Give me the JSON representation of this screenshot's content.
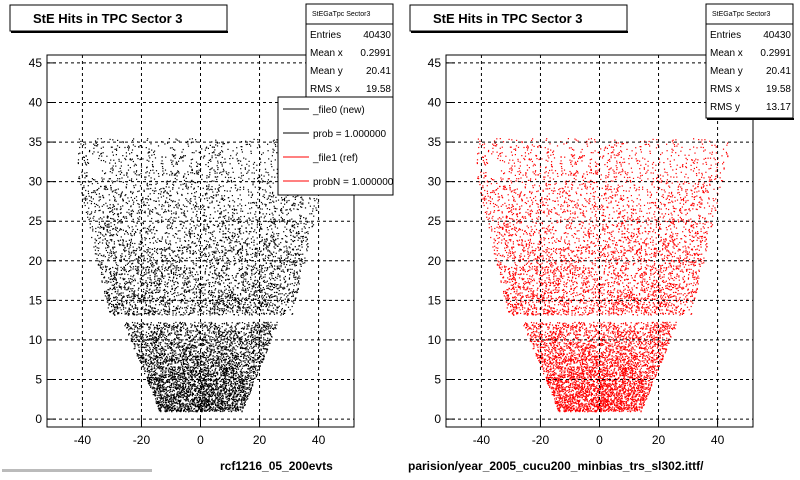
{
  "chart_data": [
    {
      "type": "scatter",
      "title": "StE Hits in TPC Sector 3",
      "xlabel": "",
      "ylabel": "",
      "xlim": [
        -52,
        52
      ],
      "ylim": [
        -1,
        46
      ],
      "xticks": [
        -40,
        -20,
        0,
        20,
        40
      ],
      "yticks": [
        0,
        5,
        10,
        15,
        20,
        25,
        30,
        35,
        40,
        45
      ],
      "grid": true,
      "series_color": "#000000",
      "stats": {
        "title": "StEGaTpc Sector3",
        "rows": [
          {
            "label": "Entries",
            "value": "40430"
          },
          {
            "label": "Mean x",
            "value": "0.2991"
          },
          {
            "label": "Mean y",
            "value": "20.41"
          },
          {
            "label": "RMS x",
            "value": "19.58"
          }
        ]
      },
      "legend": {
        "placement": "top-right",
        "entries": [
          {
            "label": "_file0 (new)",
            "color": "#000000"
          },
          {
            "label": "prob = 1.000000",
            "color": "#000000"
          },
          {
            "label": "_file1 (ref)",
            "color": "#ff0000"
          },
          {
            "label": "probN = 1.000000",
            "color": "#ff0000"
          }
        ]
      },
      "footer": "rcf1216_05_200evts"
    },
    {
      "type": "scatter",
      "title": "StE Hits in TPC Sector 3",
      "xlabel": "",
      "ylabel": "",
      "xlim": [
        -52,
        52
      ],
      "ylim": [
        -1,
        46
      ],
      "xticks": [
        -40,
        -20,
        0,
        20,
        40
      ],
      "yticks": [
        0,
        5,
        10,
        15,
        20,
        25,
        30,
        35,
        40,
        45
      ],
      "grid": true,
      "series_color": "#ff0000",
      "stats": {
        "title": "StEGaTpc Sector3",
        "rows": [
          {
            "label": "Entries",
            "value": "40430"
          },
          {
            "label": "Mean x",
            "value": "0.2991"
          },
          {
            "label": "Mean y",
            "value": "20.41"
          },
          {
            "label": "RMS x",
            "value": "19.58"
          },
          {
            "label": "RMS y",
            "value": "13.17"
          }
        ]
      },
      "footer": "parision/year_2005_cucu200_minbias_trs_sl302.ittf/"
    }
  ]
}
